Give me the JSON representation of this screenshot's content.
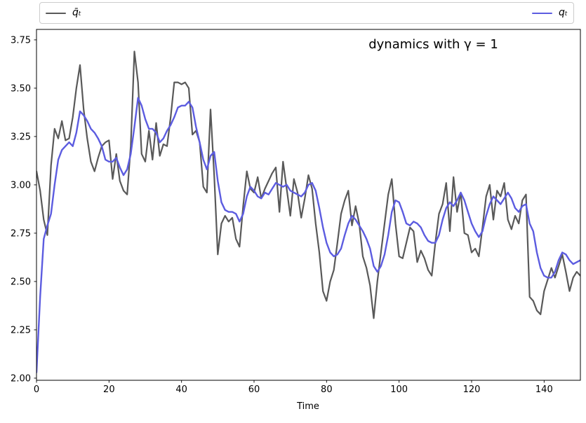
{
  "figure": {
    "background": "#ffffff"
  },
  "legend": {
    "entries": [
      {
        "label": "q̄ₜ",
        "color": "#595959"
      },
      {
        "label": "qₜ",
        "color": "#5c5ce0"
      }
    ],
    "border_color": "#cccccc",
    "position": "top, expanded full width, 2 columns"
  },
  "chart_data": {
    "type": "line",
    "title": "dynamics with γ = 1",
    "xlabel": "Time",
    "ylabel": "",
    "xlim": [
      0,
      150
    ],
    "ylim": [
      1.989,
      3.804
    ],
    "xticks": [
      0,
      20,
      40,
      60,
      80,
      100,
      120,
      140
    ],
    "yticks": [
      3.75,
      3.5,
      3.25,
      3.0,
      2.75,
      2.5,
      2.25,
      2.0
    ],
    "grid": false,
    "legend_position": "above axes",
    "axis_color": "#000000",
    "series": [
      {
        "name": "q̄ₜ",
        "color": "#595959",
        "line_width": 2.2,
        "x_start": 0,
        "x_step": 1,
        "values": [
          3.07,
          2.97,
          2.82,
          2.74,
          3.1,
          3.29,
          3.24,
          3.33,
          3.23,
          3.24,
          3.35,
          3.5,
          3.62,
          3.39,
          3.24,
          3.12,
          3.07,
          3.14,
          3.2,
          3.22,
          3.23,
          3.03,
          3.16,
          3.02,
          2.97,
          2.95,
          3.2,
          3.69,
          3.53,
          3.16,
          3.12,
          3.28,
          3.13,
          3.32,
          3.15,
          3.21,
          3.2,
          3.35,
          3.53,
          3.53,
          3.52,
          3.53,
          3.5,
          3.26,
          3.28,
          3.22,
          2.99,
          2.96,
          3.39,
          3.05,
          2.64,
          2.8,
          2.84,
          2.81,
          2.83,
          2.72,
          2.68,
          2.89,
          3.07,
          2.98,
          2.96,
          3.04,
          2.93,
          2.98,
          3.02,
          3.06,
          3.09,
          2.86,
          3.12,
          2.98,
          2.84,
          3.03,
          2.96,
          2.83,
          2.93,
          3.05,
          2.98,
          2.8,
          2.65,
          2.45,
          2.4,
          2.5,
          2.56,
          2.7,
          2.85,
          2.92,
          2.97,
          2.79,
          2.89,
          2.8,
          2.63,
          2.57,
          2.48,
          2.31,
          2.5,
          2.65,
          2.8,
          2.95,
          3.03,
          2.8,
          2.63,
          2.62,
          2.7,
          2.78,
          2.76,
          2.6,
          2.66,
          2.62,
          2.56,
          2.53,
          2.7,
          2.85,
          2.9,
          3.01,
          2.76,
          3.04,
          2.86,
          2.96,
          2.75,
          2.74,
          2.65,
          2.67,
          2.63,
          2.78,
          2.94,
          3.0,
          2.82,
          2.97,
          2.94,
          3.01,
          2.82,
          2.77,
          2.84,
          2.8,
          2.92,
          2.95,
          2.42,
          2.4,
          2.35,
          2.33,
          2.45,
          2.51,
          2.57,
          2.52,
          2.58,
          2.64,
          2.55,
          2.45,
          2.52,
          2.55,
          2.53
        ]
      },
      {
        "name": "qₜ",
        "color": "#5c5ce0",
        "line_width": 2.4,
        "x_start": 0,
        "x_step": 1,
        "values": [
          2.03,
          2.42,
          2.72,
          2.79,
          2.85,
          3.0,
          3.13,
          3.18,
          3.2,
          3.22,
          3.2,
          3.27,
          3.38,
          3.36,
          3.33,
          3.29,
          3.27,
          3.24,
          3.2,
          3.13,
          3.12,
          3.12,
          3.14,
          3.09,
          3.05,
          3.08,
          3.16,
          3.3,
          3.45,
          3.41,
          3.34,
          3.29,
          3.29,
          3.27,
          3.22,
          3.24,
          3.28,
          3.31,
          3.35,
          3.4,
          3.41,
          3.41,
          3.43,
          3.4,
          3.3,
          3.22,
          3.13,
          3.08,
          3.15,
          3.17,
          3.02,
          2.91,
          2.87,
          2.86,
          2.86,
          2.85,
          2.81,
          2.85,
          2.94,
          2.99,
          2.97,
          2.94,
          2.93,
          2.96,
          2.95,
          2.98,
          3.01,
          3.0,
          2.99,
          3.0,
          2.97,
          2.96,
          2.95,
          2.94,
          2.96,
          3.0,
          3.01,
          2.97,
          2.88,
          2.78,
          2.7,
          2.65,
          2.63,
          2.64,
          2.67,
          2.74,
          2.8,
          2.84,
          2.82,
          2.79,
          2.76,
          2.72,
          2.67,
          2.58,
          2.55,
          2.58,
          2.64,
          2.74,
          2.86,
          2.92,
          2.91,
          2.86,
          2.8,
          2.79,
          2.81,
          2.8,
          2.78,
          2.74,
          2.71,
          2.7,
          2.7,
          2.74,
          2.82,
          2.88,
          2.91,
          2.89,
          2.92,
          2.96,
          2.92,
          2.86,
          2.8,
          2.76,
          2.73,
          2.76,
          2.84,
          2.9,
          2.94,
          2.92,
          2.9,
          2.93,
          2.96,
          2.93,
          2.88,
          2.86,
          2.89,
          2.9,
          2.8,
          2.76,
          2.65,
          2.57,
          2.53,
          2.52,
          2.52,
          2.55,
          2.61,
          2.65,
          2.64,
          2.61,
          2.59,
          2.6,
          2.61
        ]
      }
    ]
  }
}
